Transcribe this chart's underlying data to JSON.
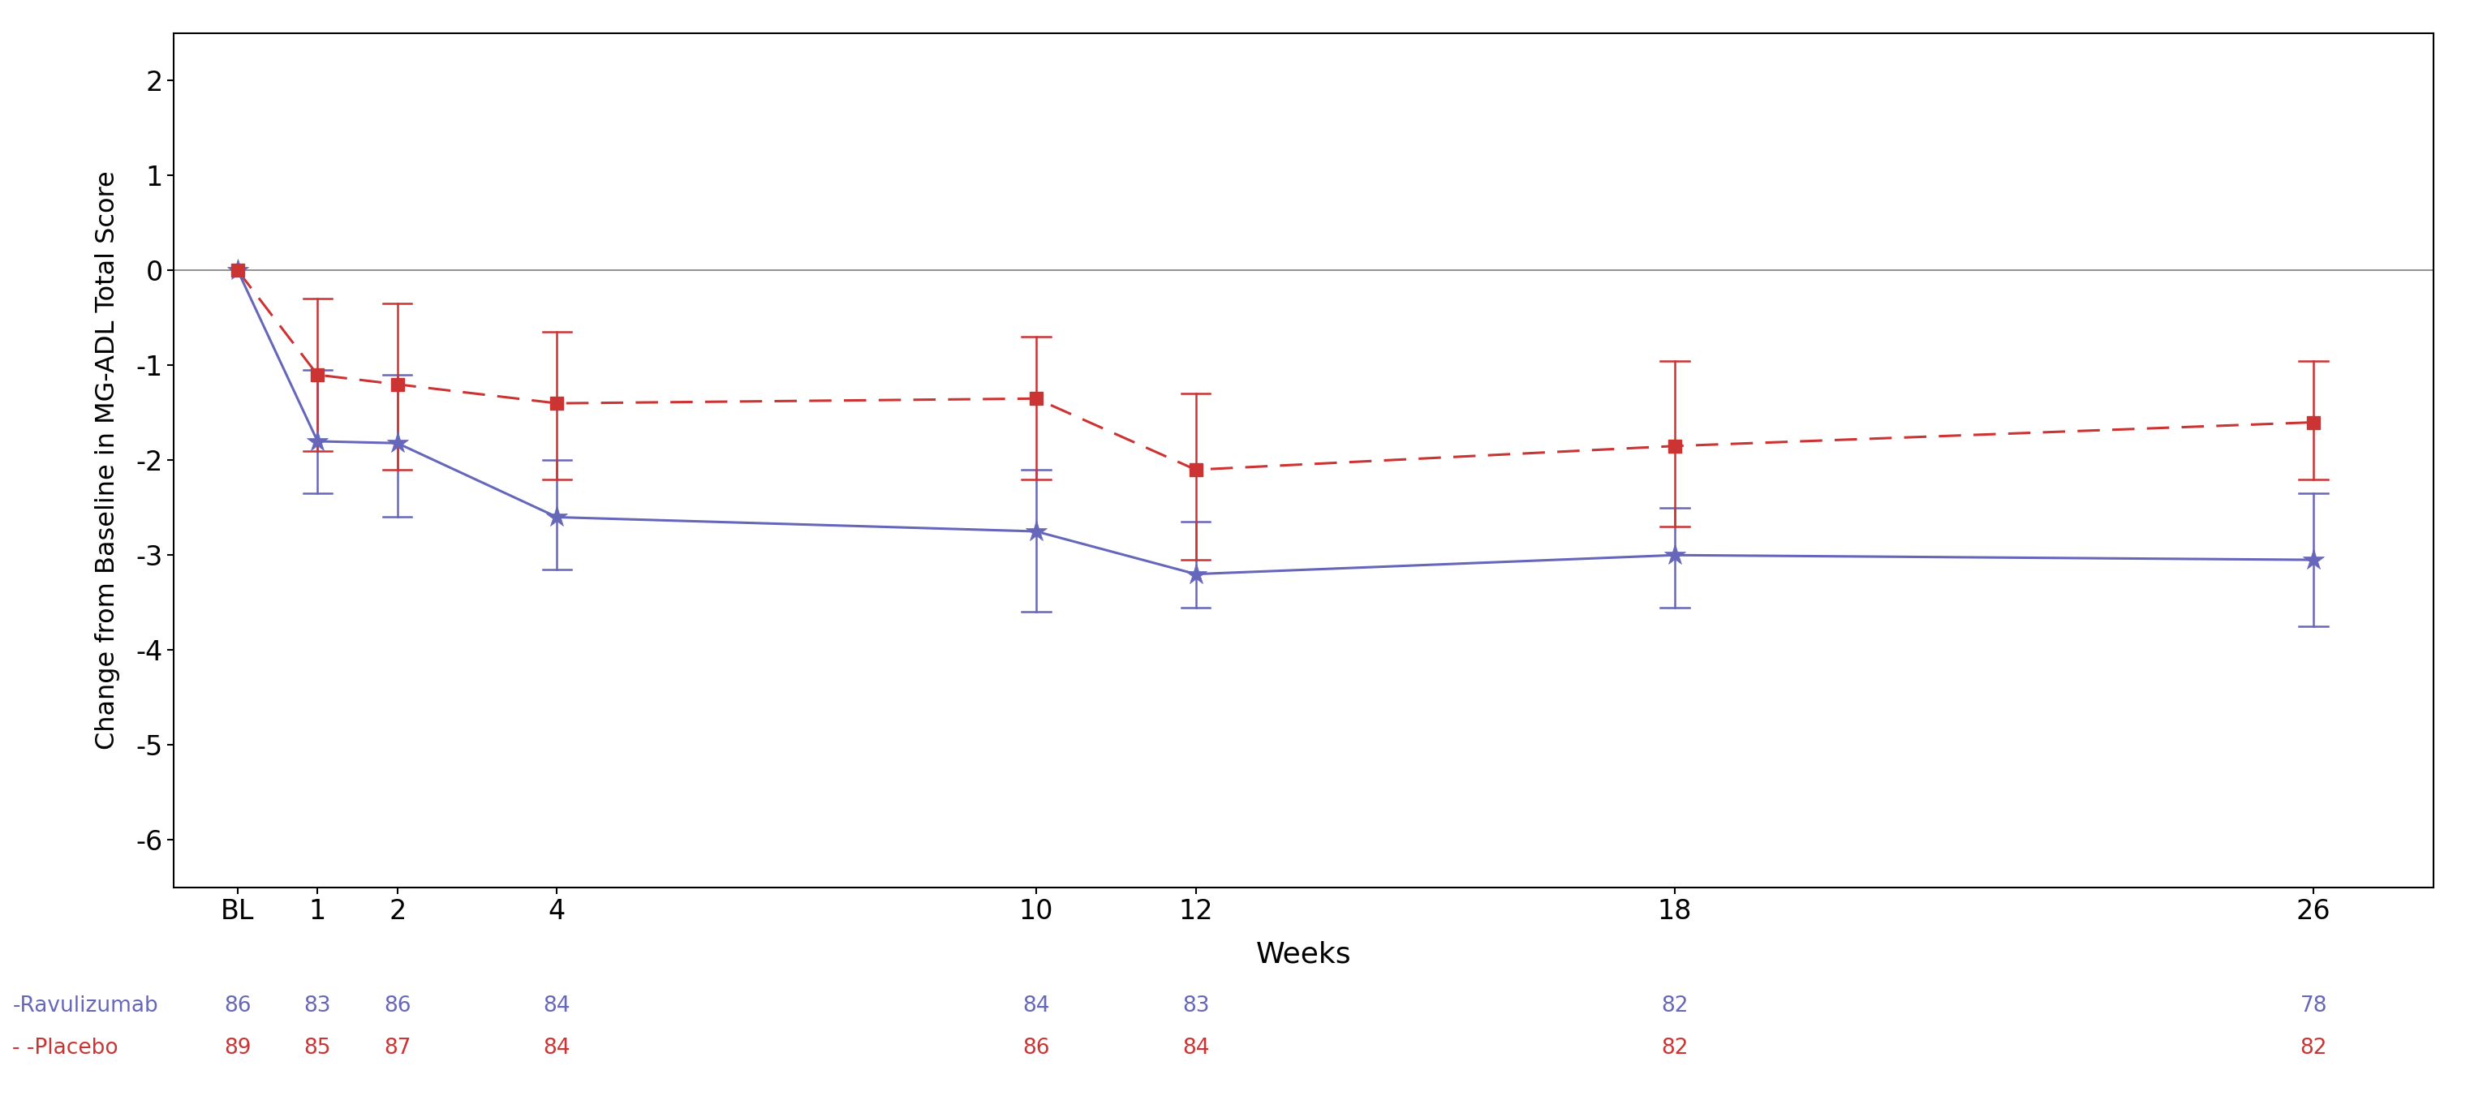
{
  "weeks_x": [
    0,
    1,
    2,
    4,
    10,
    12,
    18,
    26
  ],
  "weeks_label": [
    "BL",
    "1",
    "2",
    "4",
    "10",
    "12",
    "18",
    "26"
  ],
  "rav_mean": [
    0.0,
    -1.8,
    -1.82,
    -2.6,
    -2.75,
    -3.2,
    -3.0,
    -3.05
  ],
  "rav_ci_lo": [
    0.0,
    -2.35,
    -2.6,
    -3.15,
    -3.6,
    -3.55,
    -3.55,
    -3.75
  ],
  "rav_ci_hi": [
    0.0,
    -1.05,
    -1.1,
    -2.0,
    -2.1,
    -2.65,
    -2.5,
    -2.35
  ],
  "pla_mean": [
    0.0,
    -1.1,
    -1.2,
    -1.4,
    -1.35,
    -2.1,
    -1.85,
    -1.6
  ],
  "pla_ci_lo": [
    0.0,
    -1.9,
    -2.1,
    -2.2,
    -2.2,
    -3.05,
    -2.7,
    -2.2
  ],
  "pla_ci_hi": [
    0.0,
    -0.3,
    -0.35,
    -0.65,
    -0.7,
    -1.3,
    -0.95,
    -0.95
  ],
  "rav_color": "#6666BB",
  "pla_color": "#CC3333",
  "rav_n": [
    "86",
    "83",
    "86",
    "84",
    "84",
    "83",
    "82",
    "78"
  ],
  "pla_n": [
    "89",
    "85",
    "87",
    "84",
    "86",
    "84",
    "82",
    "82"
  ],
  "legend_rav": "-Ravulizumab",
  "legend_pla": "- -Placebo",
  "ylabel": "Change from Baseline in MG-ADL Total Score",
  "xlabel": "Weeks",
  "ylim": [
    -6.5,
    2.5
  ],
  "yticks": [
    -6,
    -5,
    -4,
    -3,
    -2,
    -1,
    0,
    1,
    2
  ],
  "bg_color": "#FFFFFF"
}
